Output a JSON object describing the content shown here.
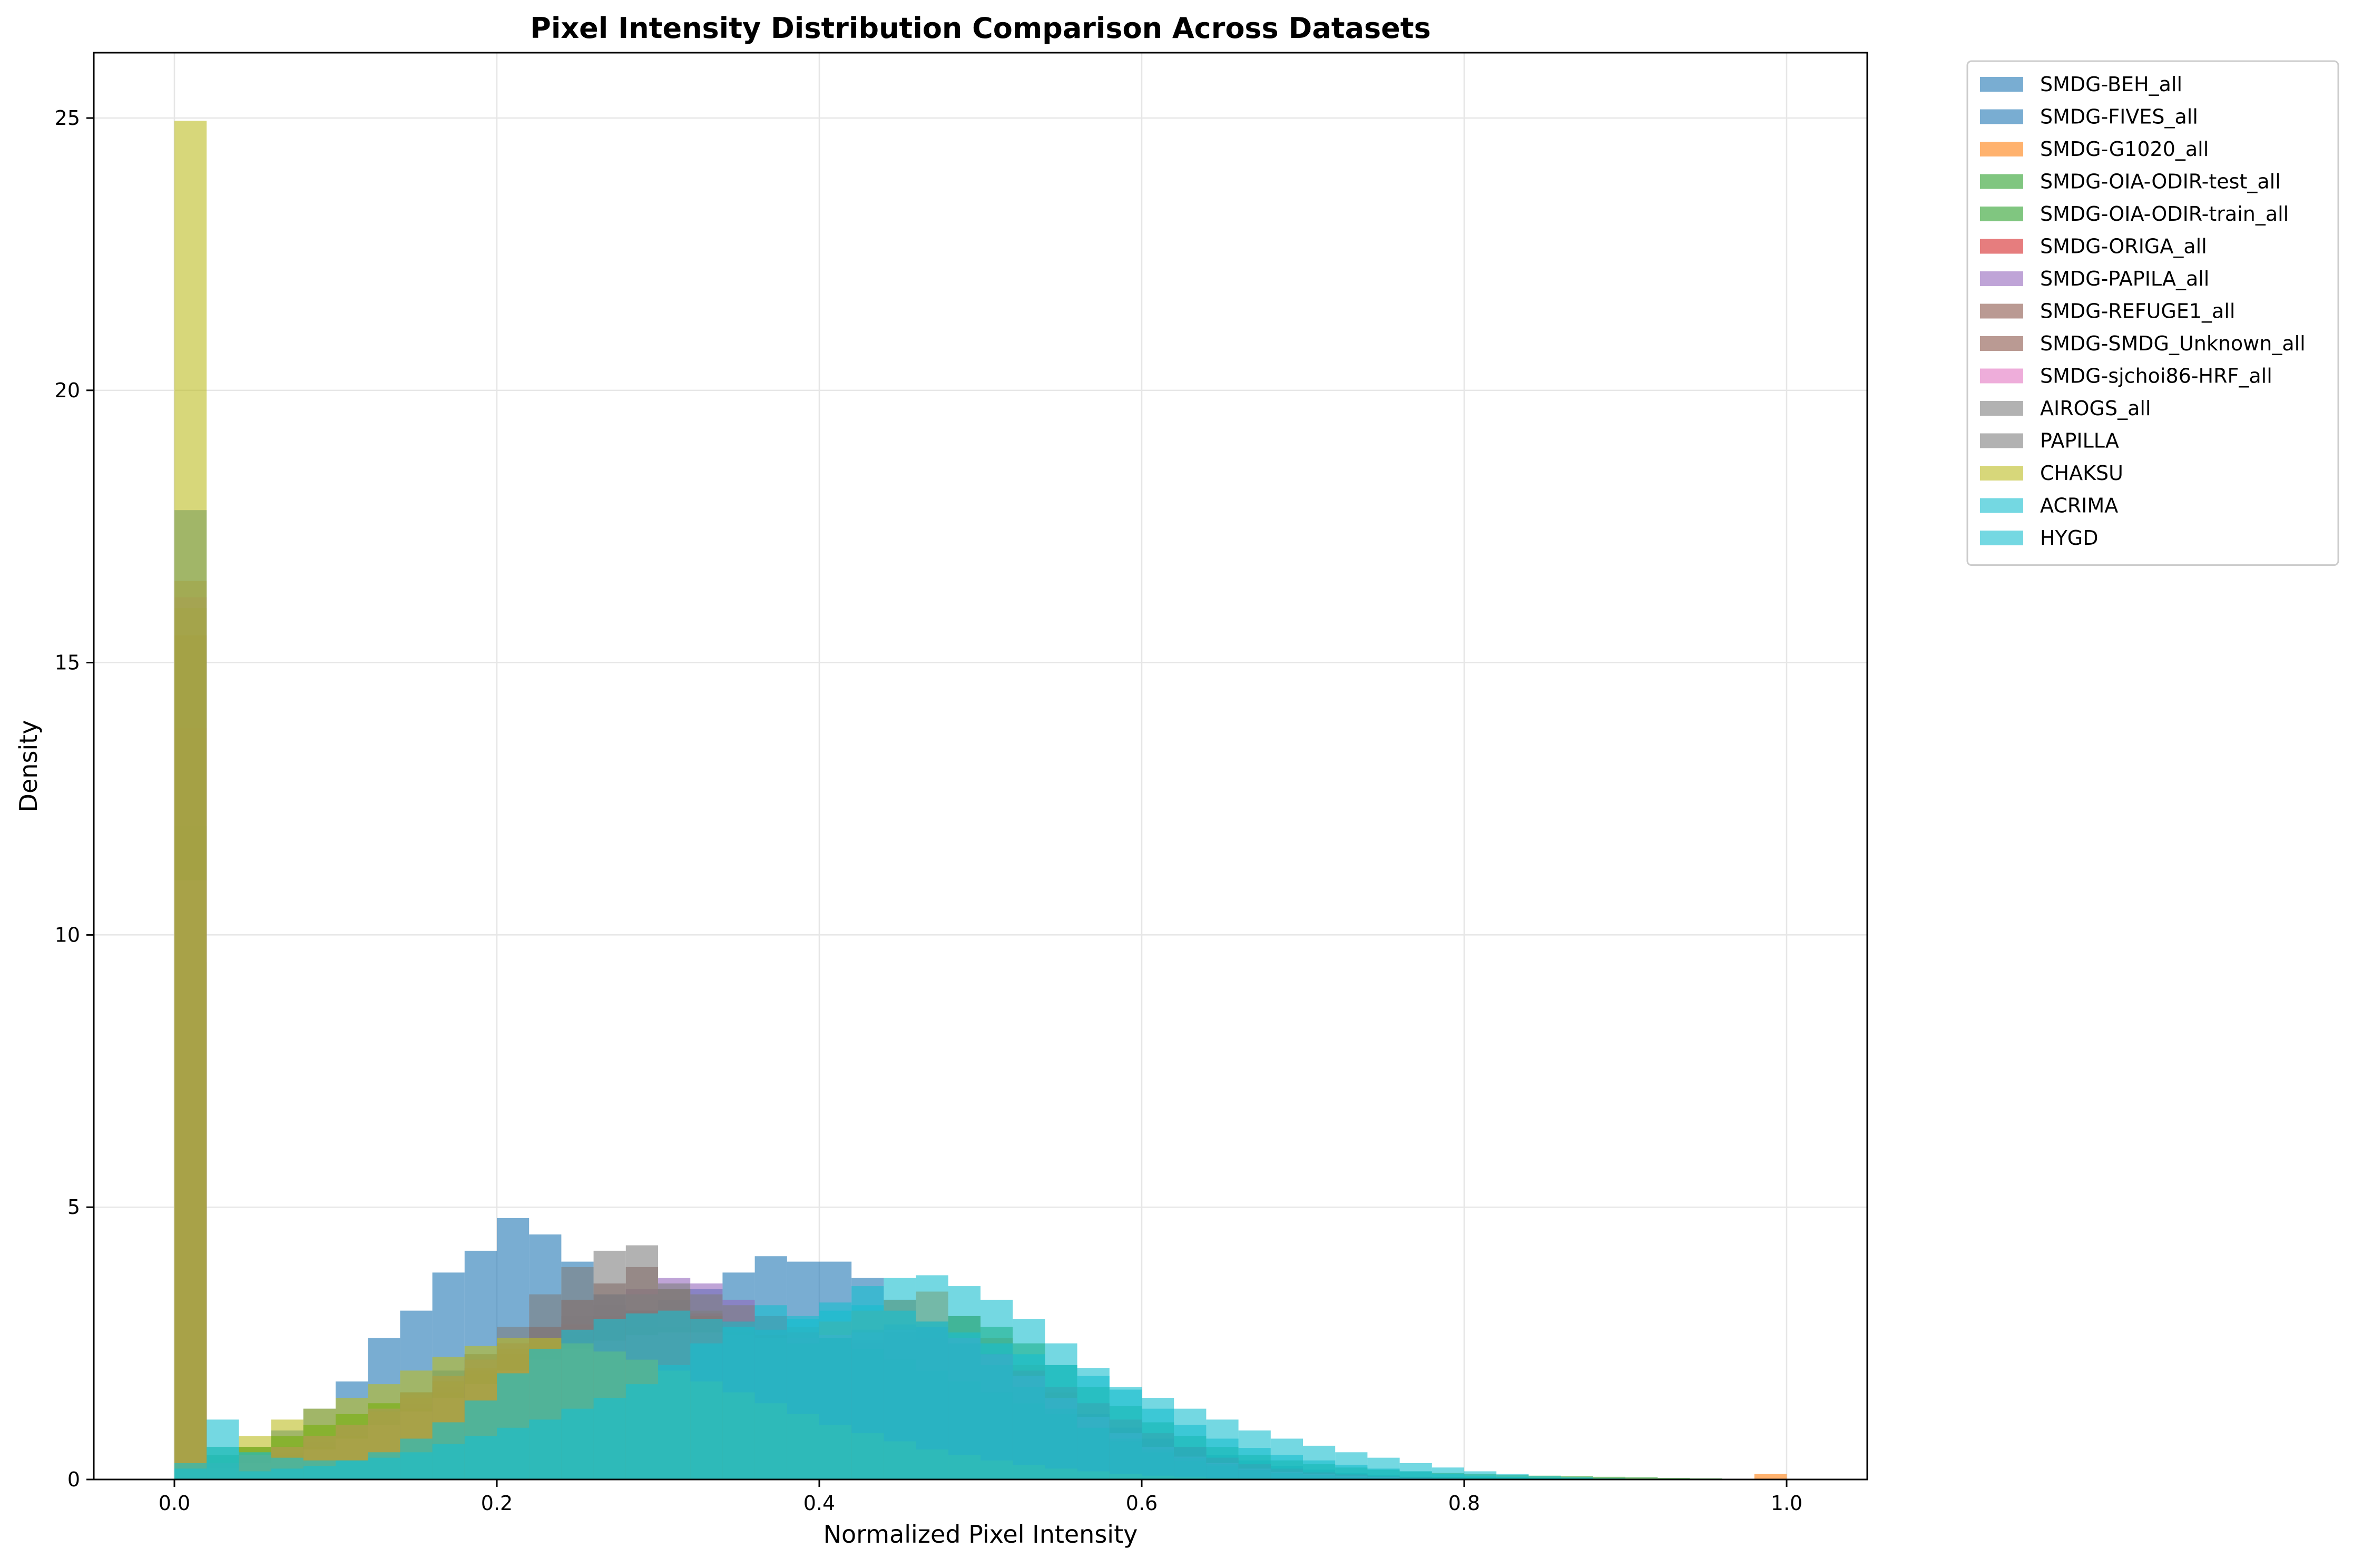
{
  "chart_data": {
    "type": "histogram",
    "title": "Pixel Intensity Distribution Comparison Across Datasets",
    "xlabel": "Normalized Pixel Intensity",
    "ylabel": "Density",
    "xlim": [
      -0.05,
      1.05
    ],
    "ylim": [
      0,
      26.2
    ],
    "xticks": [
      0.0,
      0.2,
      0.4,
      0.6,
      0.8,
      1.0
    ],
    "yticks": [
      0,
      5,
      10,
      15,
      20,
      25
    ],
    "grid": true,
    "legend_position": "outside-right-top",
    "bin_width": 0.02,
    "bin_start": 0.0,
    "series": [
      {
        "name": "SMDG-BEH_all",
        "color": "#1f77b4",
        "values": [
          17.8,
          0.45,
          0.5,
          0.6,
          0.8,
          1.0,
          1.3,
          1.6,
          2.0,
          2.3,
          2.5,
          2.6,
          2.7,
          2.9,
          3.1,
          3.3,
          3.5,
          3.8,
          4.1,
          4.0,
          4.0,
          3.7,
          3.3,
          2.9,
          2.5,
          2.1,
          1.8,
          1.5,
          1.2,
          0.95,
          0.75,
          0.6,
          0.45,
          0.35,
          0.25,
          0.18,
          0.12,
          0.08,
          0.05,
          0.03,
          0.02,
          0.01,
          0.01,
          0.005,
          0.0,
          0.0,
          0.0,
          0.0,
          0.0,
          0.0
        ]
      },
      {
        "name": "SMDG-FIVES_all",
        "color": "#1f77b4",
        "values": [
          0.2,
          0.4,
          0.6,
          0.9,
          1.3,
          1.8,
          2.6,
          3.1,
          3.8,
          4.2,
          4.8,
          4.5,
          4.0,
          3.4,
          3.0,
          2.8,
          2.5,
          2.2,
          1.9,
          1.6,
          1.4,
          1.2,
          1.0,
          0.8,
          0.65,
          0.5,
          0.4,
          0.3,
          0.22,
          0.16,
          0.12,
          0.08,
          0.05,
          0.03,
          0.02,
          0.01,
          0.005,
          0.0,
          0.0,
          0.0,
          0.0,
          0.0,
          0.0,
          0.0,
          0.0,
          0.0,
          0.0,
          0.0,
          0.0,
          0.0
        ]
      },
      {
        "name": "SMDG-G1020_all",
        "color": "#ff7f0e",
        "values": [
          9.5,
          0.1,
          0.12,
          0.15,
          0.2,
          0.25,
          0.35,
          0.45,
          0.6,
          0.75,
          0.95,
          1.15,
          1.35,
          1.55,
          1.75,
          1.95,
          2.1,
          2.3,
          2.5,
          2.7,
          2.9,
          3.1,
          3.3,
          3.45,
          3.0,
          2.6,
          2.1,
          1.6,
          1.1,
          0.75,
          0.5,
          0.35,
          0.25,
          0.18,
          0.13,
          0.1,
          0.08,
          0.06,
          0.05,
          0.04,
          0.03,
          0.025,
          0.02,
          0.015,
          0.01,
          0.01,
          0.005,
          0.005,
          0.005,
          0.1
        ]
      },
      {
        "name": "SMDG-OIA-ODIR-test_all",
        "color": "#2ca02c",
        "values": [
          9.5,
          0.45,
          0.6,
          0.8,
          1.0,
          1.2,
          1.4,
          1.6,
          1.8,
          1.95,
          2.0,
          1.95,
          1.85,
          1.7,
          1.55,
          1.4,
          1.25,
          1.1,
          0.95,
          0.8,
          0.7,
          0.6,
          0.5,
          0.45,
          0.4,
          0.35,
          0.3,
          0.27,
          0.24,
          0.2,
          0.18,
          0.15,
          0.13,
          0.11,
          0.09,
          0.08,
          0.07,
          0.06,
          0.05,
          0.045,
          0.04,
          0.035,
          0.03,
          0.025,
          0.02,
          0.015,
          0.01,
          0.005,
          0.0,
          0.0
        ]
      },
      {
        "name": "SMDG-OIA-ODIR-train_all",
        "color": "#2ca02c",
        "values": [
          9.5,
          0.45,
          0.6,
          0.8,
          1.0,
          1.2,
          1.4,
          1.6,
          1.8,
          1.95,
          2.05,
          2.0,
          1.9,
          1.75,
          1.6,
          1.5,
          1.45,
          1.5,
          1.6,
          1.8,
          2.0,
          2.2,
          2.5,
          2.8,
          3.0,
          2.8,
          2.5,
          2.1,
          1.7,
          1.35,
          1.05,
          0.8,
          0.6,
          0.45,
          0.35,
          0.28,
          0.22,
          0.18,
          0.15,
          0.12,
          0.1,
          0.08,
          0.07,
          0.06,
          0.05,
          0.04,
          0.03,
          0.02,
          0.01,
          0.0
        ]
      },
      {
        "name": "SMDG-ORIGA_all",
        "color": "#d62728",
        "values": [
          13.8,
          0.3,
          0.4,
          0.5,
          0.7,
          0.9,
          1.1,
          1.4,
          1.7,
          2.0,
          2.3,
          2.6,
          2.85,
          3.0,
          3.1,
          3.1,
          3.05,
          2.9,
          2.75,
          2.6,
          2.5,
          2.5,
          2.55,
          2.6,
          2.5,
          2.3,
          2.0,
          1.7,
          1.4,
          1.1,
          0.85,
          0.6,
          0.4,
          0.28,
          0.18,
          0.12,
          0.08,
          0.05,
          0.03,
          0.02,
          0.01,
          0.0,
          0.0,
          0.0,
          0.0,
          0.0,
          0.0,
          0.0,
          0.0,
          0.0
        ]
      },
      {
        "name": "SMDG-PAPILA_all",
        "color": "#9467bd",
        "values": [
          16.2,
          0.3,
          0.45,
          0.6,
          0.8,
          1.0,
          1.3,
          1.6,
          1.9,
          2.2,
          2.5,
          2.8,
          3.0,
          3.2,
          3.5,
          3.7,
          3.6,
          3.3,
          3.0,
          2.7,
          2.4,
          2.2,
          2.0,
          1.8,
          1.6,
          1.4,
          1.2,
          1.0,
          0.8,
          0.6,
          0.45,
          0.32,
          0.22,
          0.15,
          0.1,
          0.06,
          0.04,
          0.02,
          0.01,
          0.0,
          0.0,
          0.0,
          0.0,
          0.0,
          0.0,
          0.0,
          0.0,
          0.0,
          0.0,
          0.0
        ]
      },
      {
        "name": "SMDG-REFUGE1_all",
        "color": "#8c564b",
        "values": [
          15.5,
          0.2,
          0.3,
          0.45,
          0.6,
          0.8,
          1.0,
          1.3,
          1.6,
          2.0,
          2.4,
          2.8,
          3.3,
          3.6,
          3.9,
          3.5,
          3.0,
          2.6,
          2.3,
          2.2,
          2.3,
          2.5,
          2.7,
          2.8,
          2.6,
          2.3,
          1.9,
          1.5,
          1.15,
          0.85,
          0.6,
          0.4,
          0.28,
          0.18,
          0.12,
          0.08,
          0.05,
          0.03,
          0.02,
          0.01,
          0.0,
          0.0,
          0.0,
          0.0,
          0.0,
          0.0,
          0.0,
          0.0,
          0.0,
          0.0
        ]
      },
      {
        "name": "SMDG-SMDG_Unknown_all",
        "color": "#8c564b",
        "values": [
          12.0,
          0.3,
          0.45,
          0.6,
          0.8,
          1.0,
          1.25,
          1.5,
          1.8,
          2.05,
          2.3,
          2.5,
          2.65,
          2.75,
          2.8,
          2.8,
          2.75,
          2.7,
          2.65,
          2.6,
          2.6,
          2.55,
          2.5,
          2.4,
          2.2,
          1.95,
          1.7,
          1.45,
          1.2,
          0.95,
          0.75,
          0.55,
          0.4,
          0.28,
          0.2,
          0.14,
          0.1,
          0.06,
          0.04,
          0.02,
          0.01,
          0.0,
          0.0,
          0.0,
          0.0,
          0.0,
          0.0,
          0.0,
          0.0,
          0.0
        ]
      },
      {
        "name": "SMDG-sjchoi86-HRF_all",
        "color": "#e377c2",
        "values": [
          11.0,
          0.2,
          0.3,
          0.4,
          0.55,
          0.75,
          1.0,
          1.25,
          1.5,
          1.75,
          2.0,
          2.2,
          2.4,
          2.55,
          2.65,
          2.7,
          2.7,
          2.65,
          2.6,
          2.6,
          2.65,
          2.7,
          2.75,
          2.8,
          2.6,
          2.3,
          1.9,
          1.5,
          1.15,
          0.85,
          0.6,
          0.42,
          0.3,
          0.2,
          0.14,
          0.1,
          0.07,
          0.05,
          0.03,
          0.02,
          0.01,
          0.0,
          0.0,
          0.0,
          0.0,
          0.0,
          0.0,
          0.0,
          0.0,
          0.0
        ]
      },
      {
        "name": "AIROGS_all",
        "color": "#7f7f7f",
        "values": [
          16.5,
          0.3,
          0.45,
          0.6,
          0.8,
          1.0,
          1.25,
          1.55,
          1.9,
          2.3,
          2.8,
          3.4,
          3.9,
          4.2,
          4.3,
          3.6,
          3.1,
          2.8,
          2.6,
          2.5,
          2.6,
          2.75,
          2.85,
          2.8,
          2.5,
          2.1,
          1.7,
          1.3,
          0.95,
          0.7,
          0.5,
          0.35,
          0.25,
          0.17,
          0.12,
          0.08,
          0.05,
          0.03,
          0.02,
          0.01,
          0.0,
          0.0,
          0.0,
          0.0,
          0.0,
          0.0,
          0.0,
          0.0,
          0.0,
          0.0
        ]
      },
      {
        "name": "PAPILLA",
        "color": "#7f7f7f",
        "values": [
          16.0,
          0.3,
          0.45,
          0.6,
          0.8,
          1.0,
          1.3,
          1.6,
          1.9,
          2.2,
          2.5,
          2.8,
          3.0,
          3.2,
          3.4,
          3.5,
          3.4,
          3.2,
          3.0,
          2.8,
          2.6,
          2.4,
          2.2,
          2.0,
          1.8,
          1.6,
          1.4,
          1.2,
          0.95,
          0.75,
          0.55,
          0.4,
          0.28,
          0.18,
          0.12,
          0.08,
          0.05,
          0.03,
          0.02,
          0.01,
          0.0,
          0.0,
          0.0,
          0.0,
          0.0,
          0.0,
          0.0,
          0.0,
          0.0,
          0.0
        ]
      },
      {
        "name": "CHAKSU",
        "color": "#bcbd22",
        "values": [
          24.95,
          0.6,
          0.8,
          1.1,
          1.3,
          1.5,
          1.75,
          2.0,
          2.25,
          2.45,
          2.6,
          2.6,
          2.5,
          2.35,
          2.2,
          2.0,
          1.8,
          1.6,
          1.4,
          1.2,
          1.0,
          0.85,
          0.7,
          0.55,
          0.45,
          0.35,
          0.27,
          0.2,
          0.15,
          0.1,
          0.07,
          0.05,
          0.03,
          0.02,
          0.01,
          0.0,
          0.0,
          0.0,
          0.0,
          0.0,
          0.0,
          0.0,
          0.0,
          0.0,
          0.0,
          0.0,
          0.0,
          0.0,
          0.0,
          0.0
        ]
      },
      {
        "name": "ACRIMA",
        "color": "#17becf",
        "values": [
          0.3,
          1.1,
          0.5,
          0.4,
          0.35,
          0.35,
          0.4,
          0.5,
          0.65,
          0.8,
          0.95,
          1.1,
          1.3,
          1.5,
          1.75,
          2.1,
          2.5,
          2.9,
          3.2,
          3.0,
          3.1,
          3.2,
          3.1,
          2.9,
          2.7,
          2.5,
          2.3,
          2.1,
          1.9,
          1.7,
          1.5,
          1.3,
          1.1,
          0.9,
          0.75,
          0.62,
          0.5,
          0.4,
          0.3,
          0.22,
          0.15,
          0.1,
          0.06,
          0.04,
          0.02,
          0.01,
          0.0,
          0.0,
          0.0,
          0.0
        ]
      },
      {
        "name": "HYGD",
        "color": "#17becf",
        "values": [
          0.2,
          0.6,
          0.15,
          0.2,
          0.25,
          0.35,
          0.5,
          0.75,
          1.05,
          1.45,
          1.95,
          2.4,
          2.75,
          2.95,
          3.05,
          3.1,
          2.95,
          2.8,
          2.75,
          2.95,
          3.25,
          3.55,
          3.7,
          3.75,
          3.55,
          3.3,
          2.95,
          2.5,
          2.05,
          1.65,
          1.3,
          1.0,
          0.75,
          0.58,
          0.45,
          0.35,
          0.27,
          0.2,
          0.15,
          0.1,
          0.07,
          0.05,
          0.03,
          0.02,
          0.01,
          0.0,
          0.0,
          0.0,
          0.0,
          0.0
        ]
      }
    ]
  }
}
